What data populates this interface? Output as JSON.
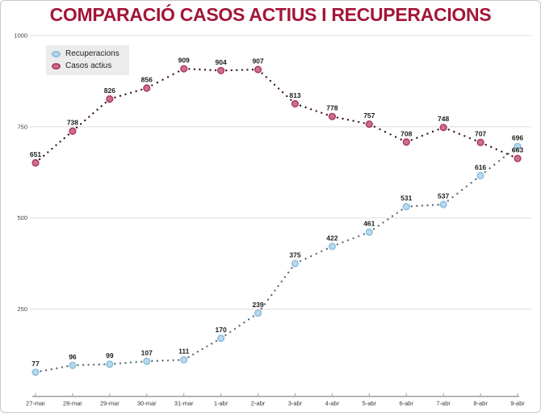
{
  "chart_data": {
    "type": "line",
    "title": "COMPARACIÓ CASOS ACTIUS I RECUPERACIONS",
    "categories": [
      "27-mar",
      "28-mar",
      "29-mar",
      "30-mar",
      "31-mar",
      "1-abr",
      "2-abr",
      "3-abr",
      "4-abr",
      "5-abr",
      "6-abr",
      "7-abr",
      "8-abr",
      "9-abr"
    ],
    "series": [
      {
        "name": "Recuperacions",
        "values": [
          77,
          96,
          99,
          107,
          111,
          170,
          239,
          375,
          422,
          461,
          531,
          537,
          616,
          696
        ],
        "marker_fill": "#b9d9ed",
        "marker_stroke": "#8fc0dd",
        "dot_color": "#5d6b74"
      },
      {
        "name": "Casos actius",
        "values": [
          651,
          738,
          826,
          856,
          909,
          904,
          907,
          813,
          778,
          757,
          708,
          748,
          707,
          663
        ],
        "marker_fill": "#ca7293",
        "marker_stroke": "#b13b68",
        "dot_color": "#3a1220"
      }
    ],
    "y_ticks": [
      1000,
      750,
      500,
      250
    ],
    "ylim": [
      0,
      1000
    ],
    "grid": "horizontal",
    "legend_position": "top-left",
    "line_style": "dotted",
    "title_color": "#a31638",
    "value_label_color": "#1b1b1b",
    "axis_color": "#9e9e9e",
    "tick_label_color": "#444444",
    "x_label_color": "#333333",
    "gridline_color": "#e7e7e7"
  }
}
